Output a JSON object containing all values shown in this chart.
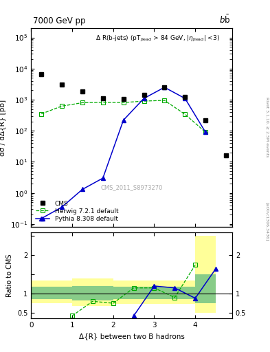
{
  "title_top": "7000 GeV pp",
  "title_right": "b$\\bar{\\mathrm{b}}$",
  "annotation": "$\\Delta$ R(b-jets) (pT$_{\\mathregular{Jlead}}$ > 84 GeV, |$\\eta_{\\mathregular{Jlead}}$| <3)",
  "cms_label": "CMS_2011_S8973270",
  "right_label": "Rivet 3.1.10, ≥ 2.5M events",
  "arxiv_label": "[arXiv:1306.3436]",
  "ylabel_main": "dσ / dΔ{R} [pb]",
  "ylabel_ratio": "Ratio to CMS",
  "xlabel": "Δ{R} between two B hadrons",
  "cms_x": [
    0.25,
    0.75,
    1.25,
    1.75,
    2.25,
    2.75,
    3.25,
    3.75,
    4.25,
    4.75
  ],
  "cms_y": [
    6500,
    3000,
    1800,
    1100,
    1050,
    1400,
    2500,
    1200,
    220,
    16
  ],
  "herwig_x": [
    0.25,
    0.75,
    1.25,
    1.75,
    2.25,
    2.75,
    3.25,
    3.75,
    4.25
  ],
  "herwig_y": [
    350,
    620,
    800,
    820,
    810,
    900,
    950,
    340,
    90
  ],
  "pythia_x": [
    0.25,
    0.75,
    1.25,
    1.75,
    2.25,
    2.75,
    3.25,
    3.75,
    4.25
  ],
  "pythia_y": [
    0.15,
    0.35,
    1.3,
    3.0,
    220,
    1100,
    2500,
    1100,
    90
  ],
  "ratio_herwig_x": [
    1.0,
    1.5,
    2.0,
    2.5,
    3.0,
    3.5,
    4.0
  ],
  "ratio_herwig_y": [
    0.42,
    0.8,
    0.75,
    1.15,
    1.15,
    0.9,
    1.75
  ],
  "ratio_pythia_x": [
    2.5,
    3.0,
    3.5,
    4.0,
    4.5
  ],
  "ratio_pythia_y": [
    0.42,
    1.2,
    1.15,
    0.88,
    1.65
  ],
  "band_x": [
    0.0,
    0.5,
    1.0,
    1.5,
    2.0,
    2.5,
    3.0,
    3.5,
    4.0,
    4.5
  ],
  "band_yellow_low": [
    0.75,
    0.75,
    0.68,
    0.68,
    0.73,
    0.73,
    0.73,
    0.73,
    0.5,
    0.5
  ],
  "band_yellow_high": [
    1.35,
    1.35,
    1.4,
    1.4,
    1.35,
    1.35,
    1.35,
    1.35,
    2.5,
    2.5
  ],
  "band_green_low": [
    0.85,
    0.85,
    0.82,
    0.82,
    0.85,
    0.85,
    0.85,
    0.85,
    0.75,
    0.75
  ],
  "band_green_high": [
    1.18,
    1.18,
    1.2,
    1.2,
    1.18,
    1.18,
    1.18,
    1.18,
    1.5,
    1.5
  ],
  "ylim_main": [
    0.08,
    200000
  ],
  "ylim_ratio": [
    0.35,
    2.6
  ],
  "xlim": [
    0.0,
    4.9
  ],
  "cms_color": "#000000",
  "herwig_color": "#00aa00",
  "pythia_color": "#0000cc",
  "band_yellow": "#ffff99",
  "band_green": "#88cc88"
}
